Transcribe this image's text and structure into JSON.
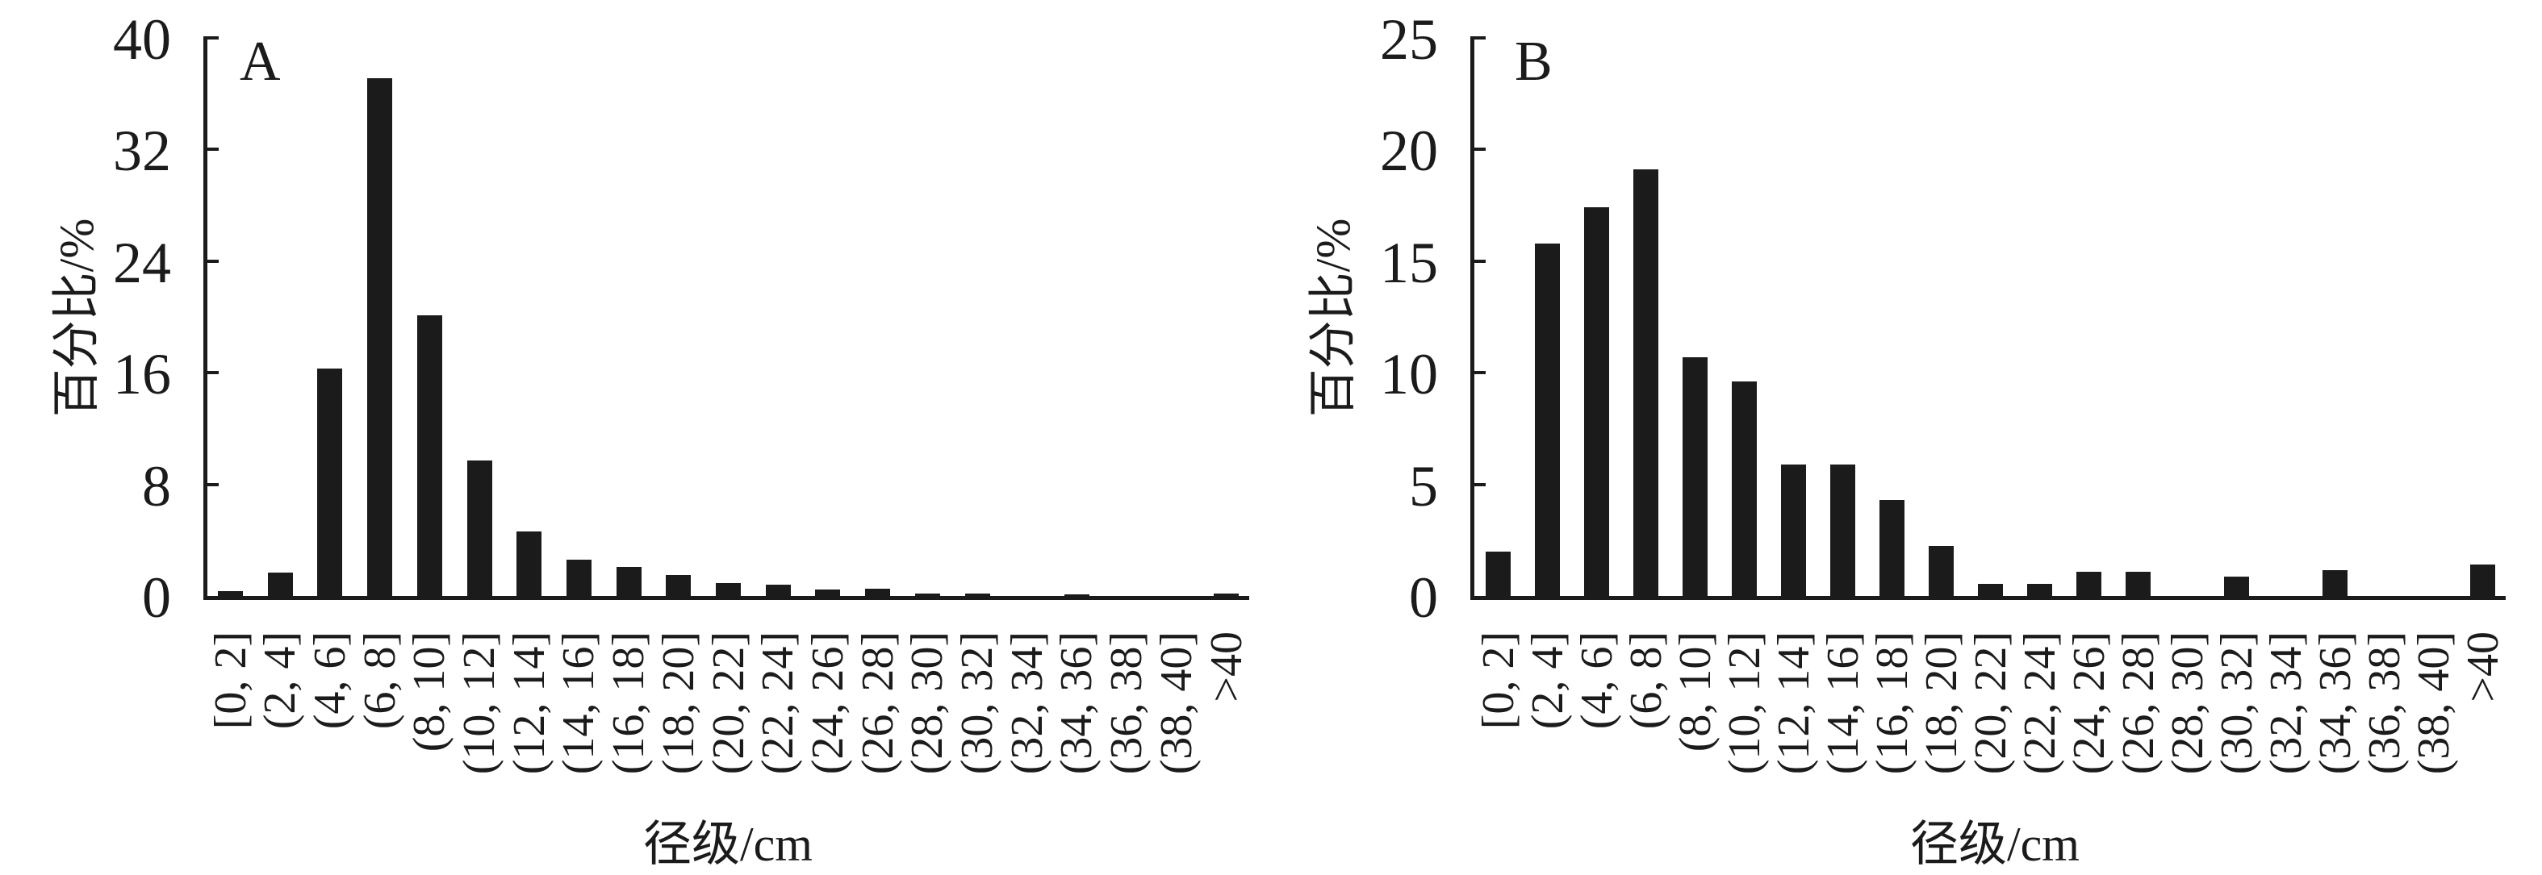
{
  "figure": {
    "background": "#ffffff",
    "bar_color": "#1b1b1b",
    "axis_color": "#1b1b1b"
  },
  "chart_data": [
    {
      "type": "bar",
      "panel_label": "A",
      "xlabel": "径级/cm",
      "ylabel": "百分比/%",
      "ylim": [
        0,
        40
      ],
      "yticks": [
        0,
        8,
        16,
        24,
        32,
        40
      ],
      "grid": false,
      "legend": "none",
      "categories": [
        "[0, 2]",
        "(2, 4]",
        "(4, 6]",
        "(6, 8]",
        "(8, 10]",
        "(10, 12]",
        "(12, 14]",
        "(14, 16]",
        "(16, 18]",
        "(18, 20]",
        "(20, 22]",
        "(22, 24]",
        "(24, 26]",
        "(26, 28]",
        "(28, 30]",
        "(30, 32]",
        "(32, 34]",
        "(34, 36]",
        "(36, 38]",
        "(38, 40]",
        ">40"
      ],
      "values": [
        0.35,
        1.7,
        16.3,
        37.1,
        20.1,
        9.7,
        4.6,
        2.6,
        2.1,
        1.5,
        0.9,
        0.8,
        0.45,
        0.5,
        0.15,
        0.2,
        0,
        0.1,
        0,
        0,
        0.2
      ]
    },
    {
      "type": "bar",
      "panel_label": "B",
      "xlabel": "径级/cm",
      "ylabel": "百分比/%",
      "ylim": [
        0,
        25
      ],
      "yticks": [
        0,
        5,
        10,
        15,
        20,
        25
      ],
      "grid": false,
      "legend": "none",
      "categories": [
        "[0, 2]",
        "(2, 4]",
        "(4, 6]",
        "(6, 8]",
        "(8, 10]",
        "(10, 12]",
        "(12, 14]",
        "(14, 16]",
        "(16, 18]",
        "(18, 20]",
        "(20, 22]",
        "(22, 24]",
        "(24, 26]",
        "(26, 28]",
        "(28, 30]",
        "(30, 32]",
        "(32, 34]",
        "(34, 36]",
        "(36, 38]",
        "(38, 40]",
        ">40"
      ],
      "values": [
        2.0,
        15.8,
        17.4,
        19.1,
        10.7,
        9.6,
        5.9,
        5.9,
        4.3,
        2.25,
        0.55,
        0.55,
        1.1,
        1.1,
        0,
        0.85,
        0,
        1.15,
        0,
        0,
        1.4
      ]
    }
  ]
}
